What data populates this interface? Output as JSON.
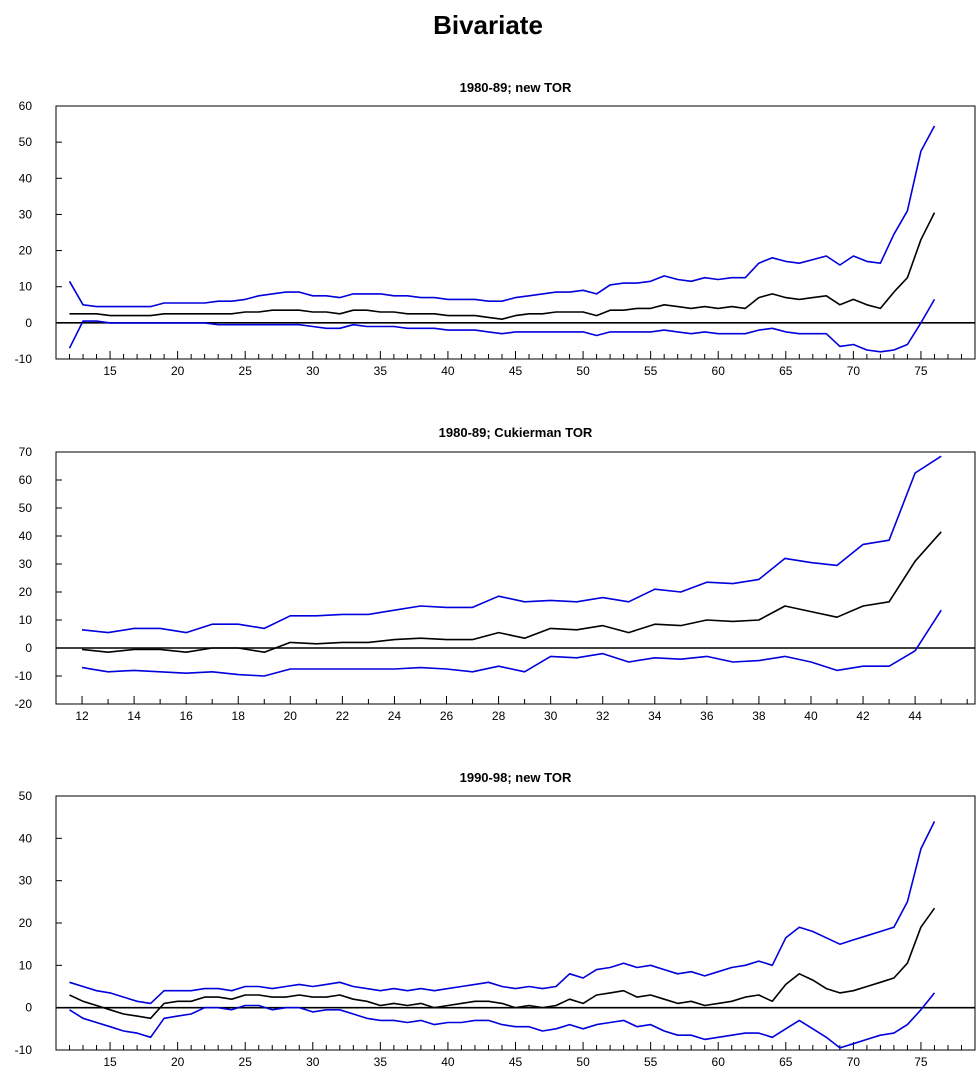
{
  "title": "Bivariate",
  "colors": {
    "band": "#0000dd",
    "center": "#000000",
    "axis": "#000000"
  },
  "chart_data": [
    {
      "type": "line",
      "title": "1980-89; new TOR",
      "xlabel": "",
      "ylabel": "",
      "x": [
        12,
        13,
        14,
        15,
        16,
        17,
        18,
        19,
        20,
        21,
        22,
        23,
        24,
        25,
        26,
        27,
        28,
        29,
        30,
        31,
        32,
        33,
        34,
        35,
        36,
        37,
        38,
        39,
        40,
        41,
        42,
        43,
        44,
        45,
        46,
        47,
        48,
        49,
        50,
        51,
        52,
        53,
        54,
        55,
        56,
        57,
        58,
        59,
        60,
        61,
        62,
        63,
        64,
        65,
        66,
        67,
        68,
        69,
        70,
        71,
        72,
        73,
        74,
        75,
        76
      ],
      "xlim": [
        11,
        79
      ],
      "ylim": [
        -10,
        60
      ],
      "y_ticks": [
        -10,
        0,
        10,
        20,
        30,
        40,
        50,
        60
      ],
      "x_ticks": [
        15,
        20,
        25,
        30,
        35,
        40,
        45,
        50,
        55,
        60,
        65,
        70,
        75
      ],
      "grid": false,
      "zero_line": true,
      "series": [
        {
          "role": "upper",
          "color": "#0000dd",
          "values": [
            11.5,
            5,
            4.5,
            4.5,
            4.5,
            4.5,
            4.5,
            5.5,
            5.5,
            5.5,
            5.5,
            6,
            6,
            6.5,
            7.5,
            8,
            8.5,
            8.5,
            7.5,
            7.5,
            7,
            8,
            8,
            8,
            7.5,
            7.5,
            7,
            7,
            6.5,
            6.5,
            6.5,
            6,
            6,
            7,
            7.5,
            8,
            8.5,
            8.5,
            9,
            8,
            10.5,
            11,
            11,
            11.5,
            13,
            12,
            11.5,
            12.5,
            12,
            12.5,
            12.5,
            16.5,
            18,
            17,
            16.5,
            17.5,
            18.5,
            16,
            18.5,
            17,
            16.5,
            24.5,
            31,
            47.5,
            54.5
          ]
        },
        {
          "role": "center",
          "color": "#000000",
          "values": [
            2.5,
            2.5,
            2.5,
            2,
            2,
            2,
            2,
            2.5,
            2.5,
            2.5,
            2.5,
            2.5,
            2.5,
            3,
            3,
            3.5,
            3.5,
            3.5,
            3,
            3,
            2.5,
            3.5,
            3.5,
            3,
            3,
            2.5,
            2.5,
            2.5,
            2,
            2,
            2,
            1.5,
            1,
            2,
            2.5,
            2.5,
            3,
            3,
            3,
            2,
            3.5,
            3.5,
            4,
            4,
            5,
            4.5,
            4,
            4.5,
            4,
            4.5,
            4,
            7,
            8,
            7,
            6.5,
            7,
            7.5,
            5,
            6.5,
            5,
            4,
            8.5,
            12.5,
            23,
            30.5
          ]
        },
        {
          "role": "lower",
          "color": "#0000dd",
          "values": [
            -7,
            0.5,
            0.5,
            0,
            0,
            0,
            0,
            0,
            0,
            0,
            0,
            -0.5,
            -0.5,
            -0.5,
            -0.5,
            -0.5,
            -0.5,
            -0.5,
            -1,
            -1.5,
            -1.5,
            -0.5,
            -1,
            -1,
            -1,
            -1.5,
            -1.5,
            -1.5,
            -2,
            -2,
            -2,
            -2.5,
            -3,
            -2.5,
            -2.5,
            -2.5,
            -2.5,
            -2.5,
            -2.5,
            -3.5,
            -2.5,
            -2.5,
            -2.5,
            -2.5,
            -2,
            -2.5,
            -3,
            -2.5,
            -3,
            -3,
            -3,
            -2,
            -1.5,
            -2.5,
            -3,
            -3,
            -3,
            -6.5,
            -6,
            -7.5,
            -8,
            -7.5,
            -6,
            0,
            6.5
          ]
        }
      ]
    },
    {
      "type": "line",
      "title": "1980-89; Cukierman TOR",
      "xlabel": "",
      "ylabel": "",
      "x": [
        12,
        13,
        14,
        15,
        16,
        17,
        18,
        19,
        20,
        21,
        22,
        23,
        24,
        25,
        26,
        27,
        28,
        29,
        30,
        31,
        32,
        33,
        34,
        35,
        36,
        37,
        38,
        39,
        40,
        41,
        42,
        43,
        44,
        45
      ],
      "xlim": [
        11,
        46.3
      ],
      "ylim": [
        -20,
        70
      ],
      "y_ticks": [
        -20,
        -10,
        0,
        10,
        20,
        30,
        40,
        50,
        60,
        70
      ],
      "x_ticks": [
        12,
        14,
        16,
        18,
        20,
        22,
        24,
        26,
        28,
        30,
        32,
        34,
        36,
        38,
        40,
        42,
        44
      ],
      "grid": false,
      "zero_line": true,
      "series": [
        {
          "role": "upper",
          "color": "#0000dd",
          "values": [
            6.5,
            5.5,
            7,
            7,
            5.5,
            8.5,
            8.5,
            7,
            11.5,
            11.5,
            12,
            12,
            13.5,
            15,
            14.5,
            14.5,
            18.5,
            16.5,
            17,
            16.5,
            18,
            16.5,
            21,
            20,
            23.5,
            23,
            24.5,
            32,
            30.5,
            29.5,
            37,
            38.5,
            62.5,
            68.5
          ]
        },
        {
          "role": "center",
          "color": "#000000",
          "values": [
            -0.5,
            -1.5,
            -0.5,
            -0.5,
            -1.5,
            0,
            0,
            -1.5,
            2,
            1.5,
            2,
            2,
            3,
            3.5,
            3,
            3,
            5.5,
            3.5,
            7,
            6.5,
            8,
            5.5,
            8.5,
            8,
            10,
            9.5,
            10,
            15,
            13,
            11,
            15,
            16.5,
            31,
            41.5
          ]
        },
        {
          "role": "lower",
          "color": "#0000dd",
          "values": [
            -7,
            -8.5,
            -8,
            -8.5,
            -9,
            -8.5,
            -9.5,
            -10,
            -7.5,
            -7.5,
            -7.5,
            -7.5,
            -7.5,
            -7,
            -7.5,
            -8.5,
            -6.5,
            -8.5,
            -3,
            -3.5,
            -2,
            -5,
            -3.5,
            -4,
            -3,
            -5,
            -4.5,
            -3,
            -5,
            -8,
            -6.5,
            -6.5,
            -1,
            13.5
          ]
        }
      ]
    },
    {
      "type": "line",
      "title": "1990-98; new TOR",
      "xlabel": "",
      "ylabel": "",
      "x": [
        12,
        13,
        14,
        15,
        16,
        17,
        18,
        19,
        20,
        21,
        22,
        23,
        24,
        25,
        26,
        27,
        28,
        29,
        30,
        31,
        32,
        33,
        34,
        35,
        36,
        37,
        38,
        39,
        40,
        41,
        42,
        43,
        44,
        45,
        46,
        47,
        48,
        49,
        50,
        51,
        52,
        53,
        54,
        55,
        56,
        57,
        58,
        59,
        60,
        61,
        62,
        63,
        64,
        65,
        66,
        67,
        68,
        69,
        70,
        71,
        72,
        73,
        74,
        75,
        76
      ],
      "xlim": [
        11,
        79
      ],
      "ylim": [
        -10,
        50
      ],
      "y_ticks": [
        -10,
        0,
        10,
        20,
        30,
        40,
        50
      ],
      "x_ticks": [
        15,
        20,
        25,
        30,
        35,
        40,
        45,
        50,
        55,
        60,
        65,
        70,
        75
      ],
      "grid": false,
      "zero_line": true,
      "series": [
        {
          "role": "upper",
          "color": "#0000dd",
          "values": [
            6,
            5,
            4,
            3.5,
            2.5,
            1.5,
            1,
            4,
            4,
            4,
            4.5,
            4.5,
            4,
            5,
            5,
            4.5,
            5,
            5.5,
            5,
            5.5,
            6,
            5,
            4.5,
            4,
            4.5,
            4,
            4.5,
            4,
            4.5,
            5,
            5.5,
            6,
            5,
            4.5,
            5,
            4.5,
            5,
            8,
            7,
            9,
            9.5,
            10.5,
            9.5,
            10,
            9,
            8,
            8.5,
            7.5,
            8.5,
            9.5,
            10,
            11,
            10,
            16.5,
            19,
            18,
            16.5,
            15,
            16,
            17,
            18,
            19,
            25,
            37.5,
            44
          ]
        },
        {
          "role": "center",
          "color": "#000000",
          "values": [
            3,
            1.5,
            0.5,
            -0.5,
            -1.5,
            -2,
            -2.5,
            1,
            1.5,
            1.5,
            2.5,
            2.5,
            2,
            3,
            3,
            2.5,
            2.5,
            3,
            2.5,
            2.5,
            3,
            2,
            1.5,
            0.5,
            1,
            0.5,
            1,
            0,
            0.5,
            1,
            1.5,
            1.5,
            1,
            0,
            0.5,
            0,
            0.5,
            2,
            1,
            3,
            3.5,
            4,
            2.5,
            3,
            2,
            1,
            1.5,
            0.5,
            1,
            1.5,
            2.5,
            3,
            1.5,
            5.5,
            8,
            6.5,
            4.5,
            3.5,
            4,
            5,
            6,
            7,
            10.5,
            19,
            23.5
          ]
        },
        {
          "role": "lower",
          "color": "#0000dd",
          "values": [
            -0.5,
            -2.5,
            -3.5,
            -4.5,
            -5.5,
            -6,
            -7,
            -2.5,
            -2,
            -1.5,
            0,
            0,
            -0.5,
            0.5,
            0.5,
            -0.5,
            0,
            0,
            -1,
            -0.5,
            -0.5,
            -1.5,
            -2.5,
            -3,
            -3,
            -3.5,
            -3,
            -4,
            -3.5,
            -3.5,
            -3,
            -3,
            -4,
            -4.5,
            -4.5,
            -5.5,
            -5,
            -4,
            -5,
            -4,
            -3.5,
            -3,
            -4.5,
            -4,
            -5.5,
            -6.5,
            -6.5,
            -7.5,
            -7,
            -6.5,
            -6,
            -6,
            -7,
            -5,
            -3,
            -5,
            -7,
            -9.5,
            -8.5,
            -7.5,
            -6.5,
            -6,
            -4,
            -0.5,
            3.5
          ]
        }
      ]
    }
  ]
}
